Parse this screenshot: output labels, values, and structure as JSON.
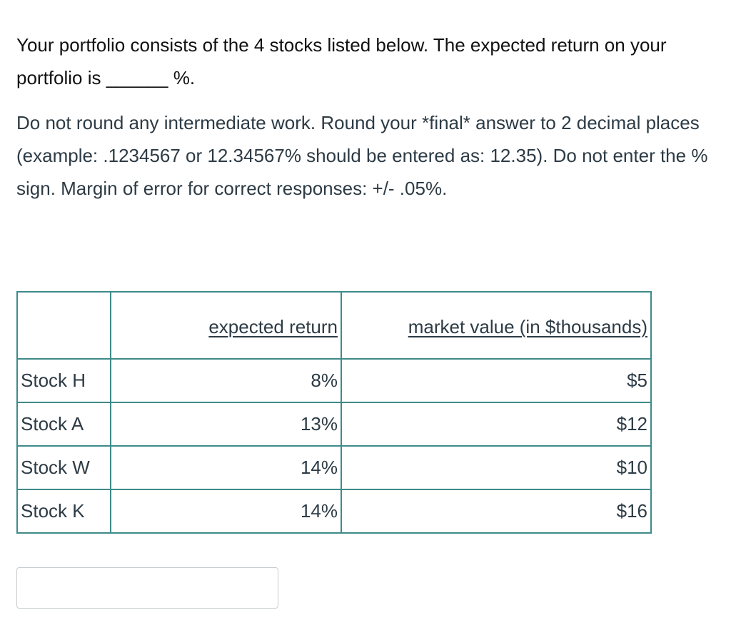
{
  "question": {
    "line1": "Your portfolio consists of the 4 stocks listed below.  The expected return on your portfolio is  ______ %.",
    "line2": "Do not round any intermediate work.  Round your *final* answer to 2 decimal places (example: .1234567 or 12.34567% should be entered as: 12.35).  Do not enter the % sign.  Margin of error for correct responses: +/- .05%."
  },
  "table": {
    "headers": [
      "",
      "expected return",
      "market value (in $thousands)"
    ],
    "rows": [
      [
        "Stock H",
        "8%",
        "$5"
      ],
      [
        "Stock A",
        "13%",
        "$12"
      ],
      [
        "Stock W",
        "14%",
        "$10"
      ],
      [
        "Stock K",
        "14%",
        "$16"
      ]
    ]
  },
  "answer": {
    "value": "",
    "placeholder": ""
  },
  "colors": {
    "table_border": "#3f8a8a",
    "text": "#2d3b45"
  }
}
